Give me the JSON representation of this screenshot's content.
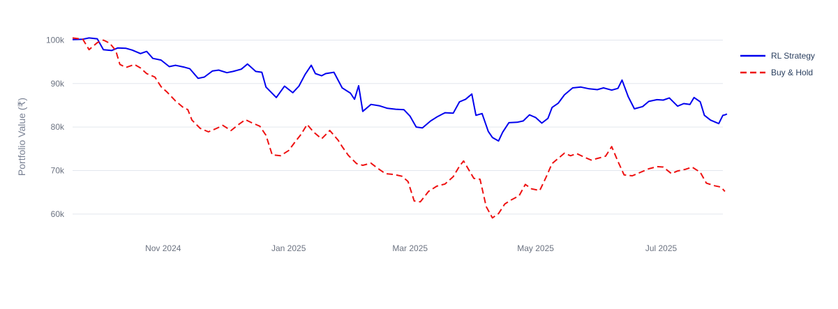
{
  "chart_data": {
    "type": "line",
    "xlabel": "",
    "ylabel": "Portfolio Value (₹)",
    "xlim": [
      "2024-09-18",
      "2025-07-31"
    ],
    "ylim": [
      55000,
      102000
    ],
    "grid": true,
    "legend_position": "top-right",
    "x_ticks": [
      {
        "date": "2024-11-01",
        "label": "Nov 2024"
      },
      {
        "date": "2025-01-01",
        "label": "Jan 2025"
      },
      {
        "date": "2025-03-01",
        "label": "Mar 2025"
      },
      {
        "date": "2025-05-01",
        "label": "May 2025"
      },
      {
        "date": "2025-07-01",
        "label": "Jul 2025"
      }
    ],
    "y_ticks": [
      {
        "value": 60000,
        "label": "60k"
      },
      {
        "value": 70000,
        "label": "70k"
      },
      {
        "value": 80000,
        "label": "80k"
      },
      {
        "value": 90000,
        "label": "90k"
      },
      {
        "value": 100000,
        "label": "100k"
      }
    ],
    "series": [
      {
        "name": "RL Strategy",
        "color": "#0000ee",
        "dash": "solid",
        "points": [
          [
            "2024-09-18",
            100100
          ],
          [
            "2024-09-23",
            100200
          ],
          [
            "2024-09-26",
            100500
          ],
          [
            "2024-09-30",
            100300
          ],
          [
            "2024-10-03",
            97800
          ],
          [
            "2024-10-07",
            97600
          ],
          [
            "2024-10-10",
            98200
          ],
          [
            "2024-10-14",
            98100
          ],
          [
            "2024-10-17",
            97700
          ],
          [
            "2024-10-21",
            96900
          ],
          [
            "2024-10-24",
            97400
          ],
          [
            "2024-10-27",
            95800
          ],
          [
            "2024-10-31",
            95400
          ],
          [
            "2024-11-04",
            93900
          ],
          [
            "2024-11-07",
            94200
          ],
          [
            "2024-11-11",
            93800
          ],
          [
            "2024-11-14",
            93400
          ],
          [
            "2024-11-18",
            91200
          ],
          [
            "2024-11-21",
            91500
          ],
          [
            "2024-11-25",
            92900
          ],
          [
            "2024-11-28",
            93100
          ],
          [
            "2024-12-02",
            92500
          ],
          [
            "2024-12-05",
            92800
          ],
          [
            "2024-12-09",
            93300
          ],
          [
            "2024-12-12",
            94500
          ],
          [
            "2024-12-16",
            92800
          ],
          [
            "2024-12-19",
            92600
          ],
          [
            "2024-12-21",
            89200
          ],
          [
            "2024-12-26",
            86800
          ],
          [
            "2024-12-30",
            89400
          ],
          [
            "2025-01-03",
            87900
          ],
          [
            "2025-01-06",
            89400
          ],
          [
            "2025-01-09",
            92100
          ],
          [
            "2025-01-12",
            94200
          ],
          [
            "2025-01-14",
            92300
          ],
          [
            "2025-01-17",
            91800
          ],
          [
            "2025-01-19",
            92300
          ],
          [
            "2025-01-23",
            92600
          ],
          [
            "2025-01-27",
            89000
          ],
          [
            "2025-01-31",
            87800
          ],
          [
            "2025-02-02",
            86400
          ],
          [
            "2025-02-04",
            89500
          ],
          [
            "2025-02-06",
            83600
          ],
          [
            "2025-02-10",
            85200
          ],
          [
            "2025-02-14",
            84900
          ],
          [
            "2025-02-18",
            84300
          ],
          [
            "2025-02-22",
            84100
          ],
          [
            "2025-02-26",
            84000
          ],
          [
            "2025-03-01",
            82500
          ],
          [
            "2025-03-04",
            80000
          ],
          [
            "2025-03-07",
            79800
          ],
          [
            "2025-03-11",
            81400
          ],
          [
            "2025-03-14",
            82300
          ],
          [
            "2025-03-18",
            83300
          ],
          [
            "2025-03-22",
            83200
          ],
          [
            "2025-03-25",
            85800
          ],
          [
            "2025-03-28",
            86400
          ],
          [
            "2025-03-31",
            87600
          ],
          [
            "2025-04-02",
            82700
          ],
          [
            "2025-04-05",
            83100
          ],
          [
            "2025-04-08",
            79000
          ],
          [
            "2025-04-10",
            77600
          ],
          [
            "2025-04-13",
            76800
          ],
          [
            "2025-04-15",
            78800
          ],
          [
            "2025-04-18",
            81000
          ],
          [
            "2025-04-22",
            81100
          ],
          [
            "2025-04-25",
            81400
          ],
          [
            "2025-04-28",
            82800
          ],
          [
            "2025-05-01",
            82200
          ],
          [
            "2025-05-04",
            80900
          ],
          [
            "2025-05-07",
            82000
          ],
          [
            "2025-05-09",
            84500
          ],
          [
            "2025-05-12",
            85500
          ],
          [
            "2025-05-15",
            87400
          ],
          [
            "2025-05-19",
            89000
          ],
          [
            "2025-05-23",
            89200
          ],
          [
            "2025-05-27",
            88800
          ],
          [
            "2025-05-31",
            88600
          ],
          [
            "2025-06-03",
            89000
          ],
          [
            "2025-06-07",
            88500
          ],
          [
            "2025-06-10",
            88900
          ],
          [
            "2025-06-12",
            90800
          ],
          [
            "2025-06-15",
            87000
          ],
          [
            "2025-06-18",
            84200
          ],
          [
            "2025-06-22",
            84700
          ],
          [
            "2025-06-25",
            85900
          ],
          [
            "2025-06-29",
            86300
          ],
          [
            "2025-07-02",
            86200
          ],
          [
            "2025-07-05",
            86700
          ],
          [
            "2025-07-09",
            84800
          ],
          [
            "2025-07-12",
            85400
          ],
          [
            "2025-07-15",
            85200
          ],
          [
            "2025-07-17",
            86800
          ],
          [
            "2025-07-20",
            85800
          ],
          [
            "2025-07-22",
            82700
          ],
          [
            "2025-07-25",
            81600
          ],
          [
            "2025-07-29",
            80800
          ],
          [
            "2025-07-31",
            82700
          ],
          [
            "2025-08-01",
            82800
          ],
          [
            "2025-08-02",
            83000
          ]
        ]
      },
      {
        "name": "Buy & Hold",
        "color": "#ee1111",
        "dash": "dashed",
        "points": [
          [
            "2024-09-18",
            100500
          ],
          [
            "2024-09-23",
            100200
          ],
          [
            "2024-09-26",
            97800
          ],
          [
            "2024-09-30",
            99400
          ],
          [
            "2024-10-03",
            100000
          ],
          [
            "2024-10-06",
            99300
          ],
          [
            "2024-10-09",
            97600
          ],
          [
            "2024-10-11",
            94400
          ],
          [
            "2024-10-14",
            93700
          ],
          [
            "2024-10-18",
            94400
          ],
          [
            "2024-10-21",
            93600
          ],
          [
            "2024-10-24",
            92300
          ],
          [
            "2024-10-28",
            91500
          ],
          [
            "2024-10-31",
            89300
          ],
          [
            "2024-11-03",
            88000
          ],
          [
            "2024-11-07",
            86000
          ],
          [
            "2024-11-11",
            84400
          ],
          [
            "2024-11-13",
            84000
          ],
          [
            "2024-11-15",
            81600
          ],
          [
            "2024-11-19",
            79700
          ],
          [
            "2024-11-23",
            78900
          ],
          [
            "2024-11-27",
            79700
          ],
          [
            "2024-11-30",
            80400
          ],
          [
            "2024-12-04",
            79200
          ],
          [
            "2024-12-08",
            80700
          ],
          [
            "2024-12-11",
            81700
          ],
          [
            "2024-12-14",
            81000
          ],
          [
            "2024-12-18",
            80200
          ],
          [
            "2024-12-21",
            78100
          ],
          [
            "2024-12-24",
            73600
          ],
          [
            "2024-12-28",
            73400
          ],
          [
            "2025-01-01",
            74600
          ],
          [
            "2025-01-04",
            76500
          ],
          [
            "2025-01-07",
            78300
          ],
          [
            "2025-01-10",
            80600
          ],
          [
            "2025-01-13",
            78900
          ],
          [
            "2025-01-17",
            77300
          ],
          [
            "2025-01-21",
            79200
          ],
          [
            "2025-01-25",
            77000
          ],
          [
            "2025-01-27",
            75500
          ],
          [
            "2025-01-30",
            73500
          ],
          [
            "2025-02-03",
            71600
          ],
          [
            "2025-02-06",
            71200
          ],
          [
            "2025-02-10",
            71700
          ],
          [
            "2025-02-13",
            70600
          ],
          [
            "2025-02-17",
            69300
          ],
          [
            "2025-02-21",
            69100
          ],
          [
            "2025-02-25",
            68700
          ],
          [
            "2025-02-28",
            67500
          ],
          [
            "2025-03-03",
            63000
          ],
          [
            "2025-03-06",
            62800
          ],
          [
            "2025-03-10",
            65200
          ],
          [
            "2025-03-14",
            66400
          ],
          [
            "2025-03-18",
            66900
          ],
          [
            "2025-03-22",
            68600
          ],
          [
            "2025-03-25",
            71000
          ],
          [
            "2025-03-27",
            72200
          ],
          [
            "2025-04-01",
            68200
          ],
          [
            "2025-04-04",
            68000
          ],
          [
            "2025-04-07",
            61700
          ],
          [
            "2025-04-10",
            59100
          ],
          [
            "2025-04-13",
            60100
          ],
          [
            "2025-04-16",
            62300
          ],
          [
            "2025-04-19",
            63200
          ],
          [
            "2025-04-23",
            64200
          ],
          [
            "2025-04-26",
            66800
          ],
          [
            "2025-04-29",
            65800
          ],
          [
            "2025-05-03",
            65400
          ],
          [
            "2025-05-06",
            68400
          ],
          [
            "2025-05-09",
            71600
          ],
          [
            "2025-05-12",
            72800
          ],
          [
            "2025-05-15",
            74000
          ],
          [
            "2025-05-18",
            73400
          ],
          [
            "2025-05-21",
            73900
          ],
          [
            "2025-05-25",
            73000
          ],
          [
            "2025-05-28",
            72400
          ],
          [
            "2025-06-01",
            72900
          ],
          [
            "2025-06-04",
            73300
          ],
          [
            "2025-06-07",
            75500
          ],
          [
            "2025-06-10",
            72100
          ],
          [
            "2025-06-13",
            69000
          ],
          [
            "2025-06-17",
            68800
          ],
          [
            "2025-06-21",
            69600
          ],
          [
            "2025-06-25",
            70400
          ],
          [
            "2025-06-29",
            70900
          ],
          [
            "2025-07-02",
            70800
          ],
          [
            "2025-07-06",
            69300
          ],
          [
            "2025-07-09",
            69900
          ],
          [
            "2025-07-13",
            70300
          ],
          [
            "2025-07-16",
            70800
          ],
          [
            "2025-07-20",
            69600
          ],
          [
            "2025-07-23",
            67100
          ],
          [
            "2025-07-27",
            66500
          ],
          [
            "2025-07-30",
            66200
          ],
          [
            "2025-08-01",
            65200
          ]
        ]
      }
    ]
  }
}
